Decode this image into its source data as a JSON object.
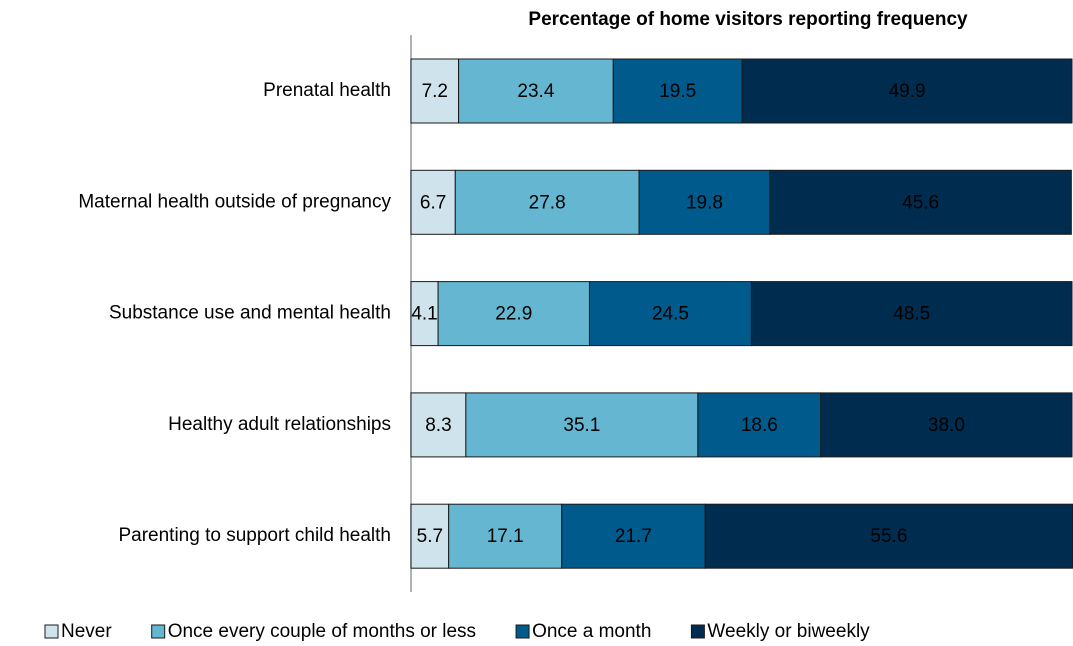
{
  "chart_data": {
    "type": "stacked_barh",
    "title": "Percentage of home visitors reporting frequency",
    "categories": [
      "Prenatal health",
      "Maternal health outside of pregnancy",
      "Substance use and mental health",
      "Healthy adult relationships",
      "Parenting to support child health"
    ],
    "series": [
      {
        "name": "Never",
        "color": "#cfe3ec",
        "values": [
          7.2,
          6.7,
          4.1,
          8.3,
          5.7
        ],
        "value_labels": [
          "7.2",
          "6.7",
          "4.1",
          "8.3",
          "5.7"
        ]
      },
      {
        "name": "Once every couple of months or less",
        "color": "#65b6d1",
        "values": [
          23.4,
          27.8,
          22.9,
          35.1,
          17.1
        ],
        "value_labels": [
          "23.4",
          "27.8",
          "22.9",
          "35.1",
          "17.1"
        ]
      },
      {
        "name": "Once a month",
        "color": "#005a8c",
        "values": [
          19.5,
          19.8,
          24.5,
          18.6,
          21.7
        ],
        "value_labels": [
          "19.5",
          "19.8",
          "24.5",
          "18.6",
          "21.7"
        ]
      },
      {
        "name": "Weekly or biweekly",
        "color": "#002d4f",
        "values": [
          49.9,
          45.6,
          48.5,
          38.0,
          55.6
        ],
        "value_labels": [
          "49.9",
          "45.6",
          "48.5",
          "38.0",
          "55.6"
        ]
      }
    ],
    "xlim": [
      0,
      100
    ],
    "legend": "bottom"
  }
}
